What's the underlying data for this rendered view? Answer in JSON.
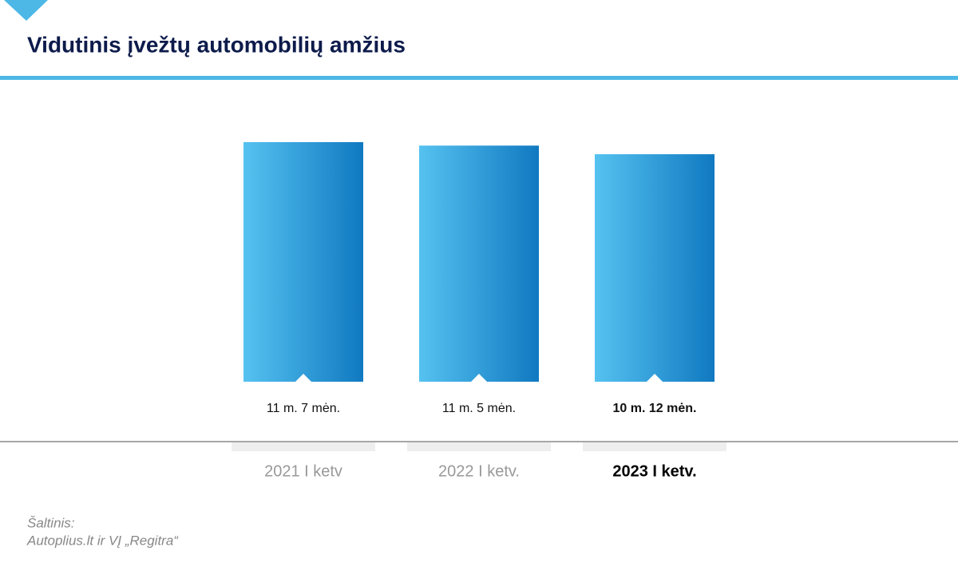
{
  "chart_data": {
    "type": "bar",
    "title": "Vidutinis įvežtų automobilių amžius",
    "categories": [
      "2021 I ketv",
      "2022 I ketv.",
      "2023 I ketv."
    ],
    "values": [
      139,
      137,
      132
    ],
    "value_labels": [
      "11 m. 7 mėn.",
      "11 m. 5 mėn.",
      "10 m. 12 mėn."
    ],
    "gradient": [
      "#55c2f0",
      "#1079c1"
    ],
    "highlight_index": 2,
    "source": [
      "Šaltinis:",
      "Autoplius.lt ir VĮ „Regitra“"
    ]
  }
}
